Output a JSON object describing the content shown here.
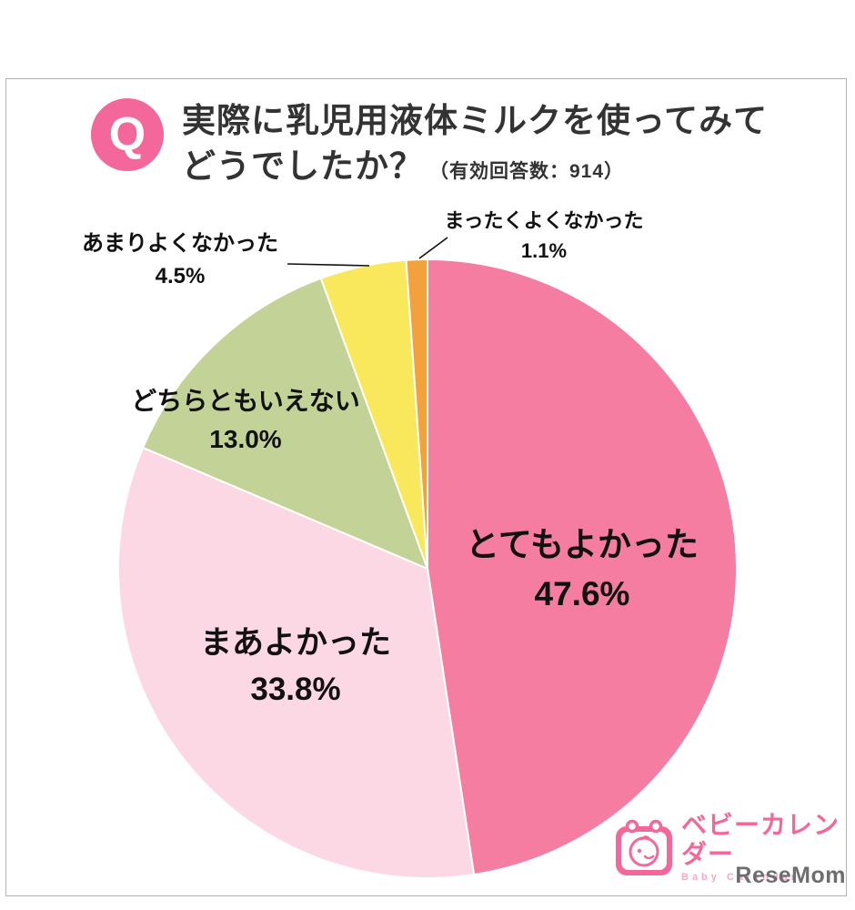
{
  "header": {
    "q_badge": "Q",
    "title_line1": "実際に乳児用液体ミルクを使ってみて",
    "title_line2": "どうでしたか？",
    "title_note": "（有効回答数：914）",
    "valid_responses": 914
  },
  "chart_data": {
    "type": "pie",
    "title": "実際に乳児用液体ミルクを使ってみてどうでしたか？",
    "valid_responses": 914,
    "start_angle_deg": 0,
    "direction": "clockwise",
    "unit": "%",
    "legend": "none",
    "categories": [
      "とてもよかった",
      "まあよかった",
      "どちらともいえない",
      "あまりよくなかった",
      "まったくよくなかった"
    ],
    "values": [
      47.6,
      33.8,
      13.0,
      4.5,
      1.1
    ],
    "colors": [
      "#f57da2",
      "#fbd8e4",
      "#c3d297",
      "#f9e75c",
      "#f2a13c"
    ],
    "labels": [
      {
        "name": "とてもよかった",
        "pct": "47.6%",
        "placement": "inside"
      },
      {
        "name": "まあよかった",
        "pct": "33.8%",
        "placement": "inside"
      },
      {
        "name": "どちらともいえない",
        "pct": "13.0%",
        "placement": "outside"
      },
      {
        "name": "あまりよくなかった",
        "pct": "4.5%",
        "placement": "outside-leader"
      },
      {
        "name": "まったくよくなかった",
        "pct": "1.1%",
        "placement": "outside-leader"
      }
    ]
  },
  "theme": {
    "accent_pink": "#f4679a",
    "panel_border": "#b3b3b3",
    "label_text": "#111111"
  },
  "branding": {
    "brand": "ベビーカレンダー",
    "subtitle": "Baby Calendar",
    "watermark": "ReseMom"
  }
}
